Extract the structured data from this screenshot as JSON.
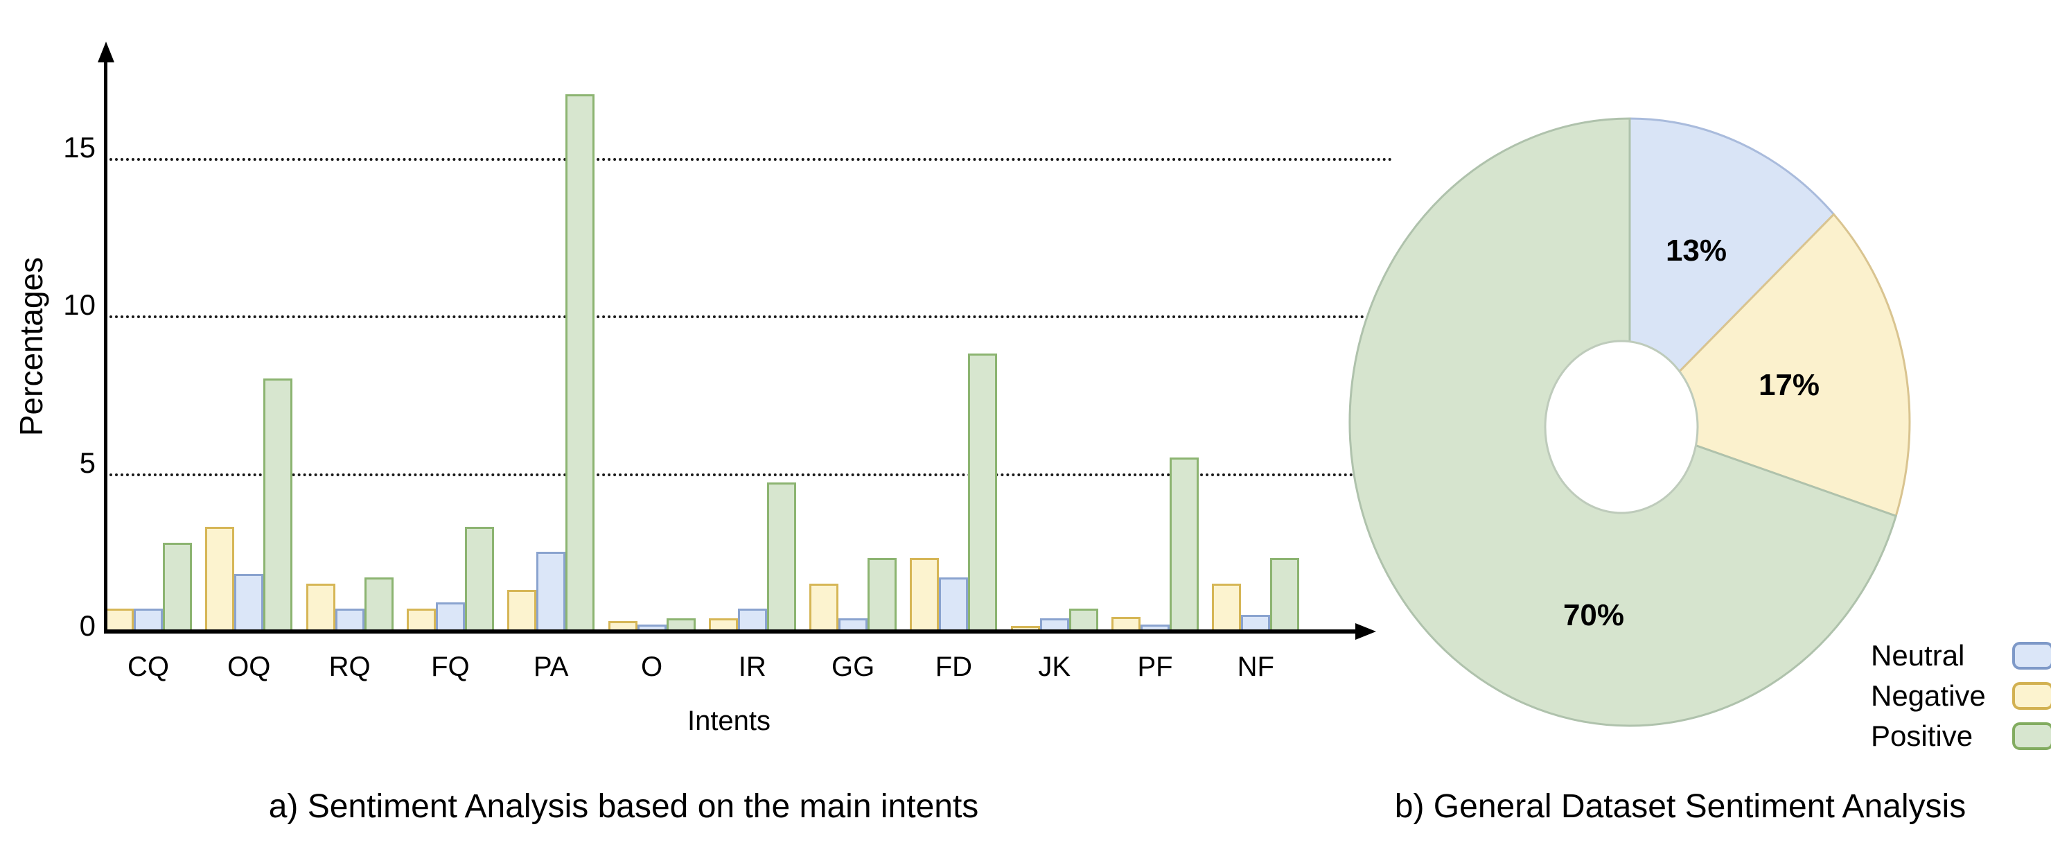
{
  "figure": {
    "panel_a": {
      "caption": "a) Sentiment Analysis based on the main intents",
      "y_axis_label": "Percentages",
      "x_axis_label": "Intents",
      "y_ticks": [
        "0",
        "5",
        "10",
        "15"
      ],
      "gridline_values": [
        5,
        10,
        15
      ]
    },
    "panel_b": {
      "caption": "b) General Dataset Sentiment Analysis"
    },
    "legend": {
      "items": [
        {
          "label": "Neutral",
          "fill": "#DBE6F8",
          "border": "#7E99C8"
        },
        {
          "label": "Negative",
          "fill": "#FCF3CF",
          "border": "#D2B152"
        },
        {
          "label": "Positive",
          "fill": "#D7E6CF",
          "border": "#82AC60"
        }
      ]
    },
    "colors": {
      "bar_negative_fill": "#FCF3CF",
      "bar_negative_border": "#D6B656",
      "bar_neutral_fill": "#DBE6F8",
      "bar_neutral_border": "#8AA3CF",
      "bar_positive_fill": "#D7E6CF",
      "bar_positive_border": "#8CB471",
      "pie_neutral_fill": "#D9E4F6",
      "pie_neutral_border": "#A9BBDC",
      "pie_negative_fill": "#FBF1CD",
      "pie_negative_border": "#D9C490",
      "pie_positive_fill": "#D6E4CE",
      "pie_positive_border": "#AFC2AC",
      "donut_hole_border": "#BECBBB",
      "gridline": "#1a1a1a"
    }
  },
  "chart_data": [
    {
      "type": "bar",
      "title": "a) Sentiment Analysis based on the main intents",
      "xlabel": "Intents",
      "ylabel": "Percentages",
      "ylim": [
        0,
        18
      ],
      "y_ticks": [
        0,
        5,
        10,
        15
      ],
      "grid": "horizontal dotted lines at 5, 10, 15",
      "legend_position": "bottom-right of figure (shared with pie)",
      "categories": [
        "CQ",
        "OQ",
        "RQ",
        "FQ",
        "PA",
        "O",
        "IR",
        "GG",
        "FD",
        "JK",
        "PF",
        "NF"
      ],
      "series": [
        {
          "name": "Negative",
          "color": "#FCF3CF",
          "values": [
            0.7,
            3.3,
            1.5,
            0.7,
            1.3,
            0.3,
            0.4,
            1.5,
            2.3,
            0.15,
            0.45,
            1.5
          ]
        },
        {
          "name": "Neutral",
          "color": "#DBE6F8",
          "values": [
            0.7,
            1.8,
            0.7,
            0.9,
            2.5,
            0.2,
            0.7,
            0.4,
            1.7,
            0.4,
            0.2,
            0.5
          ]
        },
        {
          "name": "Positive",
          "color": "#D7E6CF",
          "values": [
            2.8,
            8.0,
            1.7,
            3.3,
            17.0,
            0.4,
            4.7,
            2.3,
            8.8,
            0.7,
            5.5,
            2.3
          ]
        }
      ],
      "bar_order_in_group": [
        "Negative",
        "Neutral",
        "Positive"
      ]
    },
    {
      "type": "pie",
      "title": "b) General Dataset Sentiment Analysis",
      "donut": true,
      "start_angle_deg": 0,
      "direction": "clockwise",
      "slices": [
        {
          "label": "Neutral",
          "value": 13,
          "text": "13%",
          "color": "#D9E4F6"
        },
        {
          "label": "Negative",
          "value": 17,
          "text": "17%",
          "color": "#FBF1CD"
        },
        {
          "label": "Positive",
          "value": 70,
          "text": "70%",
          "color": "#D6E4CE"
        }
      ],
      "legend_position": "bottom-right"
    }
  ]
}
